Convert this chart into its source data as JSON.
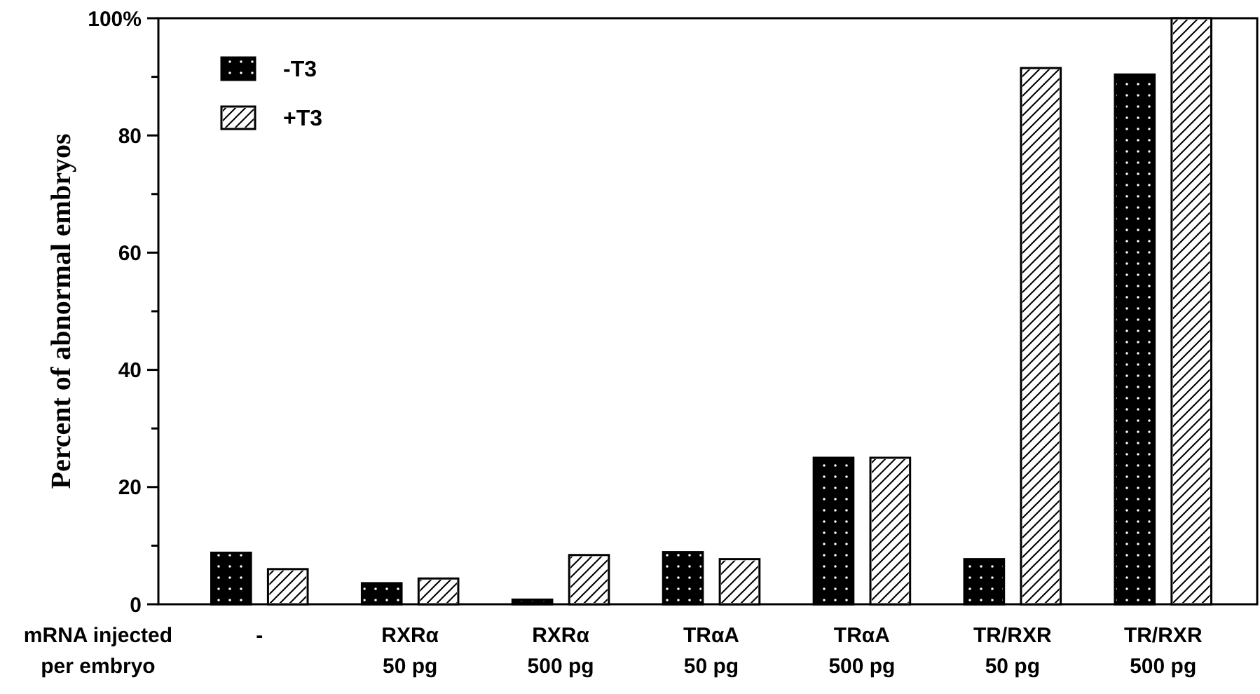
{
  "chart_data": {
    "type": "bar",
    "ylabel": "Percent of abnormal embryos",
    "categories": [
      "-",
      "RXRα\n50 pg",
      "RXRα\n500 pg",
      "TRαA\n50 pg",
      "TRαA\n500 pg",
      "TR/RXR\n50 pg",
      "TR/RXR\n500 pg"
    ],
    "series": [
      {
        "name": "-T3",
        "color": "#000000",
        "values": [
          8.8,
          3.6,
          0.8,
          8.9,
          25,
          7.7,
          90.4
        ]
      },
      {
        "name": "+T3",
        "color": "#ffffff",
        "values": [
          6,
          4.4,
          8.4,
          7.7,
          25,
          91.5,
          100
        ]
      }
    ],
    "ylim": [
      0,
      100
    ],
    "yticks": [
      0,
      {
        "value": 10,
        "label": null
      },
      20,
      {
        "value": 30,
        "label": null
      },
      40,
      {
        "value": 50,
        "label": null
      },
      60,
      {
        "value": 70,
        "label": null
      },
      80,
      {
        "value": 90,
        "label": null
      },
      {
        "value": 100,
        "label": "100%"
      }
    ],
    "annotations": [
      "mRNA injected\nper embryo"
    ],
    "legend": "top left",
    "grid": false
  }
}
